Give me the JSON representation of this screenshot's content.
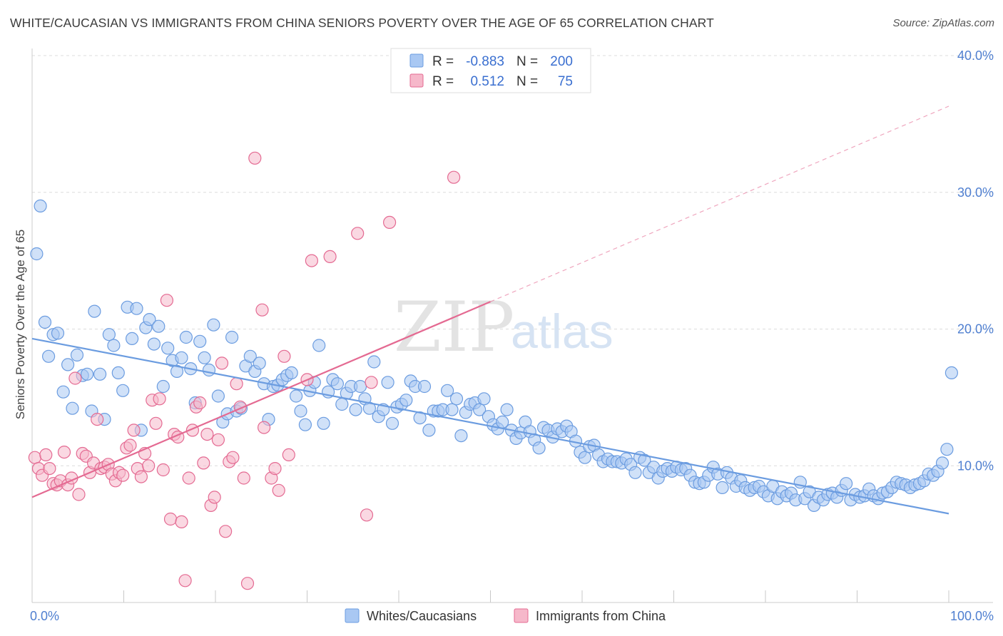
{
  "title": "WHITE/CAUCASIAN VS IMMIGRANTS FROM CHINA SENIORS POVERTY OVER THE AGE OF 65 CORRELATION CHART",
  "source": "Source: ZipAtlas.com",
  "watermark": {
    "zip": "ZIP",
    "atlas": "atlas"
  },
  "legend": {
    "r_label": "R =",
    "n_label": "N =",
    "rows": [
      {
        "r": "-0.883",
        "n": "200",
        "color": "#a9c8f3"
      },
      {
        "r": "0.512",
        "n": "75",
        "color": "#f6b8ca"
      }
    ]
  },
  "bottom_legend": [
    {
      "label": "Whites/Caucasians",
      "color": "#a9c8f3"
    },
    {
      "label": "Immigrants from China",
      "color": "#f6b8ca"
    }
  ],
  "chart_data": {
    "type": "scatter",
    "title": "WHITE/CAUCASIAN VS IMMIGRANTS FROM CHINA SENIORS POVERTY OVER THE AGE OF 65 CORRELATION CHART",
    "xlabel": "",
    "ylabel": "Seniors Poverty Over the Age of 65",
    "xlim": [
      0,
      100
    ],
    "ylim": [
      0,
      40
    ],
    "x_tick_labels": [
      "0.0%",
      "100.0%"
    ],
    "y_ticks": [
      10,
      20,
      30,
      40
    ],
    "y_tick_labels": [
      "10.0%",
      "20.0%",
      "30.0%",
      "40.0%"
    ],
    "grid": true,
    "legend_position": "top-center",
    "series": [
      {
        "name": "Whites/Caucasians",
        "color": "#6b9ce0",
        "fill": "#a9c8f3",
        "trend": {
          "x0": 0,
          "y0": 19.3,
          "x1": 100,
          "y1": 6.5,
          "dashed_extension": false
        },
        "points": [
          [
            0.5,
            25.5
          ],
          [
            0.9,
            29
          ],
          [
            1.4,
            20.5
          ],
          [
            1.8,
            18
          ],
          [
            2.3,
            19.6
          ],
          [
            2.8,
            19.7
          ],
          [
            3.4,
            15.4
          ],
          [
            3.9,
            17.4
          ],
          [
            4.4,
            14.2
          ],
          [
            4.9,
            18.1
          ],
          [
            5.5,
            16.6
          ],
          [
            6,
            16.7
          ],
          [
            6.5,
            14
          ],
          [
            6.8,
            21.3
          ],
          [
            7.4,
            16.7
          ],
          [
            7.9,
            13.4
          ],
          [
            8.4,
            19.6
          ],
          [
            8.9,
            18.8
          ],
          [
            9.4,
            16.8
          ],
          [
            9.9,
            15.5
          ],
          [
            10.4,
            21.6
          ],
          [
            10.9,
            19.3
          ],
          [
            11.4,
            21.5
          ],
          [
            11.9,
            12.6
          ],
          [
            12.4,
            20.1
          ],
          [
            12.8,
            20.7
          ],
          [
            13.3,
            18.9
          ],
          [
            13.8,
            20.2
          ],
          [
            14.3,
            15.8
          ],
          [
            14.8,
            18.6
          ],
          [
            15.3,
            17.7
          ],
          [
            15.8,
            16.9
          ],
          [
            16.3,
            17.9
          ],
          [
            16.8,
            19.4
          ],
          [
            17.3,
            17.1
          ],
          [
            17.8,
            14.6
          ],
          [
            18.3,
            19.1
          ],
          [
            18.8,
            17.9
          ],
          [
            19.3,
            17
          ],
          [
            19.8,
            20.3
          ],
          [
            20.3,
            15.1
          ],
          [
            20.8,
            13.2
          ],
          [
            21.3,
            13.8
          ],
          [
            21.8,
            19.4
          ],
          [
            22.3,
            14
          ],
          [
            22.8,
            14.2
          ],
          [
            23.3,
            17.3
          ],
          [
            23.8,
            18
          ],
          [
            24.3,
            16.9
          ],
          [
            24.8,
            17.5
          ],
          [
            25.3,
            16
          ],
          [
            25.8,
            13.4
          ],
          [
            26.3,
            15.8
          ],
          [
            26.8,
            15.9
          ],
          [
            27.3,
            16.3
          ],
          [
            27.8,
            16.6
          ],
          [
            28.3,
            16.8
          ],
          [
            28.8,
            15.1
          ],
          [
            29.3,
            14
          ],
          [
            29.8,
            13
          ],
          [
            30.3,
            15.5
          ],
          [
            30.8,
            16.1
          ],
          [
            31.3,
            18.8
          ],
          [
            31.8,
            13.1
          ],
          [
            32.3,
            15.4
          ],
          [
            32.8,
            16.3
          ],
          [
            33.3,
            16
          ],
          [
            33.8,
            14.5
          ],
          [
            34.3,
            15.3
          ],
          [
            34.8,
            15.8
          ],
          [
            35.3,
            14.1
          ],
          [
            35.8,
            15.8
          ],
          [
            36.3,
            14.9
          ],
          [
            36.8,
            14.2
          ],
          [
            37.3,
            17.6
          ],
          [
            37.8,
            13.6
          ],
          [
            38.3,
            14.1
          ],
          [
            38.8,
            16.1
          ],
          [
            39.3,
            13.1
          ],
          [
            39.8,
            14.3
          ],
          [
            40.3,
            14.5
          ],
          [
            40.8,
            14.8
          ],
          [
            41.3,
            16.2
          ],
          [
            41.8,
            15.8
          ],
          [
            42.3,
            13.5
          ],
          [
            42.8,
            15.8
          ],
          [
            43.3,
            12.6
          ],
          [
            43.8,
            14
          ],
          [
            44.3,
            14
          ],
          [
            44.8,
            14.1
          ],
          [
            45.3,
            15.5
          ],
          [
            45.8,
            14.1
          ],
          [
            46.3,
            14.9
          ],
          [
            46.8,
            12.2
          ],
          [
            47.3,
            13.9
          ],
          [
            47.8,
            14.5
          ],
          [
            48.3,
            14.6
          ],
          [
            48.8,
            14.1
          ],
          [
            49.3,
            14.9
          ],
          [
            49.8,
            13.6
          ],
          [
            50.3,
            13
          ],
          [
            50.8,
            12.7
          ],
          [
            51.3,
            13.2
          ],
          [
            51.8,
            14.1
          ],
          [
            52.3,
            12.6
          ],
          [
            52.8,
            12
          ],
          [
            53.3,
            12.4
          ],
          [
            53.8,
            13.2
          ],
          [
            54.3,
            12.5
          ],
          [
            54.8,
            11.9
          ],
          [
            55.3,
            11.3
          ],
          [
            55.8,
            12.8
          ],
          [
            56.3,
            12.6
          ],
          [
            56.8,
            12.1
          ],
          [
            57.3,
            12.7
          ],
          [
            57.8,
            12.5
          ],
          [
            58.3,
            12.9
          ],
          [
            58.8,
            12.5
          ],
          [
            59.3,
            11.8
          ],
          [
            59.8,
            11
          ],
          [
            60.3,
            10.6
          ],
          [
            60.8,
            11.4
          ],
          [
            61.3,
            11.5
          ],
          [
            61.8,
            10.8
          ],
          [
            62.3,
            10.3
          ],
          [
            62.8,
            10.5
          ],
          [
            63.3,
            10.3
          ],
          [
            63.8,
            10.3
          ],
          [
            64.3,
            10.2
          ],
          [
            64.8,
            10.5
          ],
          [
            65.3,
            10.1
          ],
          [
            65.8,
            9.5
          ],
          [
            66.3,
            10.6
          ],
          [
            66.8,
            10.4
          ],
          [
            67.3,
            9.5
          ],
          [
            67.8,
            9.9
          ],
          [
            68.3,
            9.1
          ],
          [
            68.8,
            9.6
          ],
          [
            69.3,
            9.8
          ],
          [
            69.8,
            9.6
          ],
          [
            70.3,
            9.9
          ],
          [
            70.8,
            9.7
          ],
          [
            71.3,
            9.8
          ],
          [
            71.8,
            9.3
          ],
          [
            72.3,
            8.8
          ],
          [
            72.8,
            8.7
          ],
          [
            73.3,
            8.8
          ],
          [
            73.8,
            9.3
          ],
          [
            74.3,
            9.9
          ],
          [
            74.8,
            9.4
          ],
          [
            75.3,
            8.4
          ],
          [
            75.8,
            9.5
          ],
          [
            76.3,
            9.1
          ],
          [
            76.8,
            8.5
          ],
          [
            77.3,
            8.9
          ],
          [
            77.8,
            8.4
          ],
          [
            78.3,
            8.2
          ],
          [
            78.8,
            8.4
          ],
          [
            79.3,
            8.5
          ],
          [
            79.8,
            8.1
          ],
          [
            80.3,
            7.8
          ],
          [
            80.8,
            8.5
          ],
          [
            81.3,
            7.6
          ],
          [
            81.8,
            8.1
          ],
          [
            82.3,
            7.8
          ],
          [
            82.8,
            8
          ],
          [
            83.3,
            7.5
          ],
          [
            83.8,
            8.8
          ],
          [
            84.3,
            7.6
          ],
          [
            84.8,
            8.1
          ],
          [
            85.3,
            7.1
          ],
          [
            85.8,
            7.7
          ],
          [
            86.3,
            7.5
          ],
          [
            86.8,
            7.9
          ],
          [
            87.3,
            8
          ],
          [
            87.8,
            7.7
          ],
          [
            88.3,
            8.2
          ],
          [
            88.8,
            8.7
          ],
          [
            89.3,
            7.5
          ],
          [
            89.8,
            7.9
          ],
          [
            90.3,
            7.7
          ],
          [
            90.8,
            7.8
          ],
          [
            91.3,
            8.3
          ],
          [
            91.8,
            7.8
          ],
          [
            92.3,
            7.6
          ],
          [
            92.8,
            8
          ],
          [
            93.3,
            8.1
          ],
          [
            93.8,
            8.4
          ],
          [
            94.3,
            8.8
          ],
          [
            94.8,
            8.7
          ],
          [
            95.3,
            8.6
          ],
          [
            95.8,
            8.4
          ],
          [
            96.3,
            8.6
          ],
          [
            96.8,
            8.7
          ],
          [
            97.3,
            8.9
          ],
          [
            97.8,
            9.4
          ],
          [
            98.3,
            9.3
          ],
          [
            98.8,
            9.6
          ],
          [
            99.3,
            10.2
          ],
          [
            99.8,
            11.2
          ],
          [
            100.3,
            16.8
          ]
        ]
      },
      {
        "name": "Immigrants from China",
        "color": "#e46a92",
        "fill": "#f6b8ca",
        "trend": {
          "x0": 0,
          "y0": 7.7,
          "x1": 50,
          "y1": 22,
          "dashed_extension": true,
          "dash_x1": 100,
          "dash_y1": 36.3
        },
        "points": [
          [
            0.3,
            10.6
          ],
          [
            0.7,
            9.8
          ],
          [
            1.1,
            9.3
          ],
          [
            1.5,
            10.8
          ],
          [
            1.9,
            9.8
          ],
          [
            2.3,
            8.7
          ],
          [
            2.7,
            8.6
          ],
          [
            3.1,
            8.9
          ],
          [
            3.5,
            11
          ],
          [
            3.9,
            8.6
          ],
          [
            4.3,
            9.1
          ],
          [
            4.7,
            16.4
          ],
          [
            5.1,
            7.9
          ],
          [
            5.5,
            10.9
          ],
          [
            5.9,
            10.7
          ],
          [
            6.3,
            9.5
          ],
          [
            6.7,
            10.2
          ],
          [
            7.1,
            13.4
          ],
          [
            7.5,
            9.8
          ],
          [
            7.9,
            9.9
          ],
          [
            8.3,
            10.1
          ],
          [
            8.7,
            9.4
          ],
          [
            9.1,
            8.9
          ],
          [
            9.5,
            9.5
          ],
          [
            9.9,
            9.3
          ],
          [
            10.3,
            11.3
          ],
          [
            10.7,
            11.5
          ],
          [
            11.1,
            12.6
          ],
          [
            11.5,
            9.8
          ],
          [
            11.9,
            9.2
          ],
          [
            12.3,
            10.9
          ],
          [
            12.7,
            10
          ],
          [
            13.1,
            14.8
          ],
          [
            13.5,
            13.1
          ],
          [
            13.9,
            14.9
          ],
          [
            14.3,
            9.7
          ],
          [
            14.7,
            22.1
          ],
          [
            15.1,
            6.1
          ],
          [
            15.5,
            12.3
          ],
          [
            15.9,
            12.1
          ],
          [
            16.3,
            5.9
          ],
          [
            16.7,
            1.6
          ],
          [
            17.1,
            9.1
          ],
          [
            17.5,
            12.6
          ],
          [
            17.9,
            14.3
          ],
          [
            18.3,
            14.6
          ],
          [
            18.7,
            10.2
          ],
          [
            19.1,
            12.3
          ],
          [
            19.5,
            7.1
          ],
          [
            19.9,
            7.7
          ],
          [
            20.3,
            11.9
          ],
          [
            20.7,
            17.5
          ],
          [
            21.1,
            5.2
          ],
          [
            21.5,
            10.3
          ],
          [
            21.9,
            10.6
          ],
          [
            22.3,
            16
          ],
          [
            22.7,
            14.3
          ],
          [
            23.1,
            9.1
          ],
          [
            23.5,
            1.4
          ],
          [
            24.3,
            32.5
          ],
          [
            25.1,
            21.4
          ],
          [
            25.3,
            12.8
          ],
          [
            26.1,
            9.1
          ],
          [
            26.5,
            9.8
          ],
          [
            26.9,
            8.2
          ],
          [
            27.5,
            18
          ],
          [
            28,
            10.8
          ],
          [
            30,
            16.3
          ],
          [
            30.5,
            25
          ],
          [
            32.5,
            25.3
          ],
          [
            35.5,
            27
          ],
          [
            36.5,
            6.4
          ],
          [
            37,
            16.1
          ],
          [
            39,
            27.8
          ],
          [
            46,
            31.1
          ]
        ]
      }
    ]
  }
}
